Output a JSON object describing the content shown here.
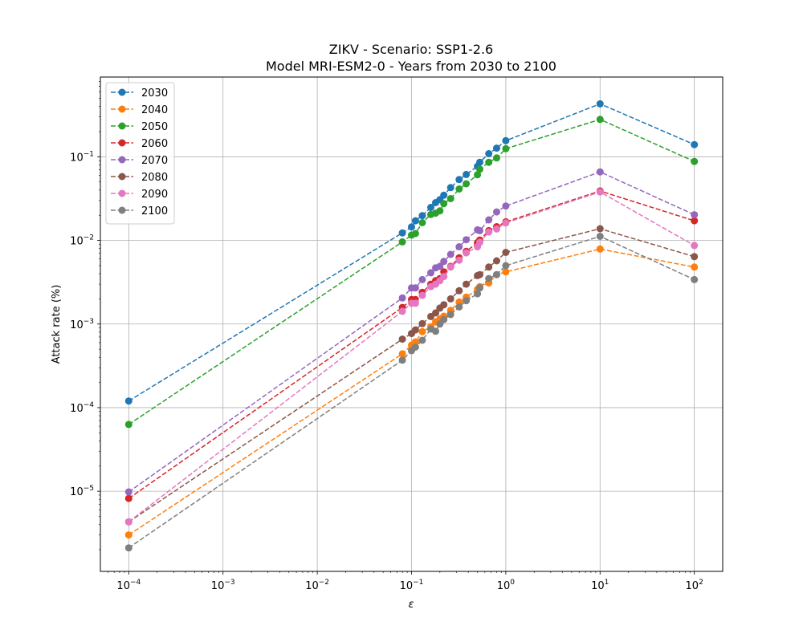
{
  "chart_data": {
    "type": "line",
    "title": "ZIKV - Scenario: SSP1-2.6",
    "subtitle": "Model MRI-ESM2-0 - Years from 2030 to 2100",
    "xlabel": "ε",
    "ylabel": "Attack rate (%)",
    "xscale": "log",
    "yscale": "log",
    "xlim": [
      5e-05,
      200
    ],
    "ylim": [
      1.1e-06,
      0.9
    ],
    "x_ticks": [
      {
        "value": 0.0001,
        "base": "10",
        "exp": "−4"
      },
      {
        "value": 0.001,
        "base": "10",
        "exp": "−3"
      },
      {
        "value": 0.01,
        "base": "10",
        "exp": "−2"
      },
      {
        "value": 0.1,
        "base": "10",
        "exp": "−1"
      },
      {
        "value": 1,
        "base": "10",
        "exp": "0"
      },
      {
        "value": 10,
        "base": "10",
        "exp": "1"
      },
      {
        "value": 100,
        "base": "10",
        "exp": "2"
      }
    ],
    "y_ticks": [
      {
        "value": 1e-05,
        "base": "10",
        "exp": "−5"
      },
      {
        "value": 0.0001,
        "base": "10",
        "exp": "−4"
      },
      {
        "value": 0.001,
        "base": "10",
        "exp": "−3"
      },
      {
        "value": 0.01,
        "base": "10",
        "exp": "−2"
      },
      {
        "value": 0.1,
        "base": "10",
        "exp": "−1"
      }
    ],
    "grid": true,
    "legend_position": "top-left",
    "x": [
      0.0001,
      0.08,
      0.1,
      0.11,
      0.13,
      0.16,
      0.18,
      0.2,
      0.22,
      0.26,
      0.32,
      0.38,
      0.5,
      0.53,
      0.66,
      0.8,
      1,
      10,
      100
    ],
    "series": [
      {
        "name": "2030",
        "color": "#1f77b4",
        "values": [
          0.00012,
          0.0123,
          0.0145,
          0.0172,
          0.0198,
          0.0248,
          0.0283,
          0.0307,
          0.0348,
          0.0428,
          0.0535,
          0.0615,
          0.077,
          0.086,
          0.109,
          0.127,
          0.156,
          0.43,
          0.14
        ]
      },
      {
        "name": "2040",
        "color": "#ff7f0e",
        "values": [
          3e-06,
          0.00044,
          0.00056,
          0.00061,
          0.00081,
          0.00093,
          0.00106,
          0.00115,
          0.00124,
          0.00146,
          0.00183,
          0.0021,
          0.0026,
          0.0028,
          0.0031,
          0.0039,
          0.0042,
          0.0079,
          0.0048
        ]
      },
      {
        "name": "2050",
        "color": "#2ca02c",
        "values": [
          6.3e-05,
          0.0096,
          0.0116,
          0.0121,
          0.0163,
          0.0204,
          0.0212,
          0.0226,
          0.0276,
          0.0316,
          0.0412,
          0.0476,
          0.061,
          0.071,
          0.086,
          0.097,
          0.125,
          0.28,
          0.088
        ]
      },
      {
        "name": "2060",
        "color": "#d62728",
        "values": [
          8.2e-06,
          0.00158,
          0.00196,
          0.00196,
          0.0024,
          0.003,
          0.0033,
          0.0035,
          0.0042,
          0.0049,
          0.0062,
          0.0074,
          0.0094,
          0.0101,
          0.0131,
          0.0146,
          0.0167,
          0.039,
          0.0172
        ]
      },
      {
        "name": "2070",
        "color": "#9467bd",
        "values": [
          9.8e-06,
          0.00205,
          0.0027,
          0.0027,
          0.0034,
          0.0041,
          0.0047,
          0.0049,
          0.0056,
          0.0068,
          0.0084,
          0.0102,
          0.0134,
          0.0131,
          0.0176,
          0.0219,
          0.0258,
          0.066,
          0.0203
        ]
      },
      {
        "name": "2080",
        "color": "#8c564b",
        "values": [
          4.3e-06,
          0.00066,
          0.00077,
          0.00085,
          0.00101,
          0.00123,
          0.00136,
          0.00155,
          0.0017,
          0.002,
          0.0025,
          0.003,
          0.0038,
          0.0039,
          0.0048,
          0.0057,
          0.0072,
          0.0138,
          0.0064
        ]
      },
      {
        "name": "2090",
        "color": "#e377c2",
        "values": [
          4.3e-06,
          0.00142,
          0.00177,
          0.00177,
          0.0022,
          0.0028,
          0.003,
          0.0033,
          0.0037,
          0.0048,
          0.0058,
          0.0071,
          0.0084,
          0.0095,
          0.0126,
          0.0137,
          0.0162,
          0.038,
          0.0087
        ]
      },
      {
        "name": "2100",
        "color": "#7f7f7f",
        "values": [
          2.1e-06,
          0.00037,
          0.00048,
          0.00053,
          0.00064,
          0.00087,
          0.00082,
          0.001,
          0.00113,
          0.0013,
          0.0016,
          0.0019,
          0.0023,
          0.0027,
          0.0035,
          0.0039,
          0.005,
          0.0112,
          0.0034
        ]
      }
    ]
  }
}
